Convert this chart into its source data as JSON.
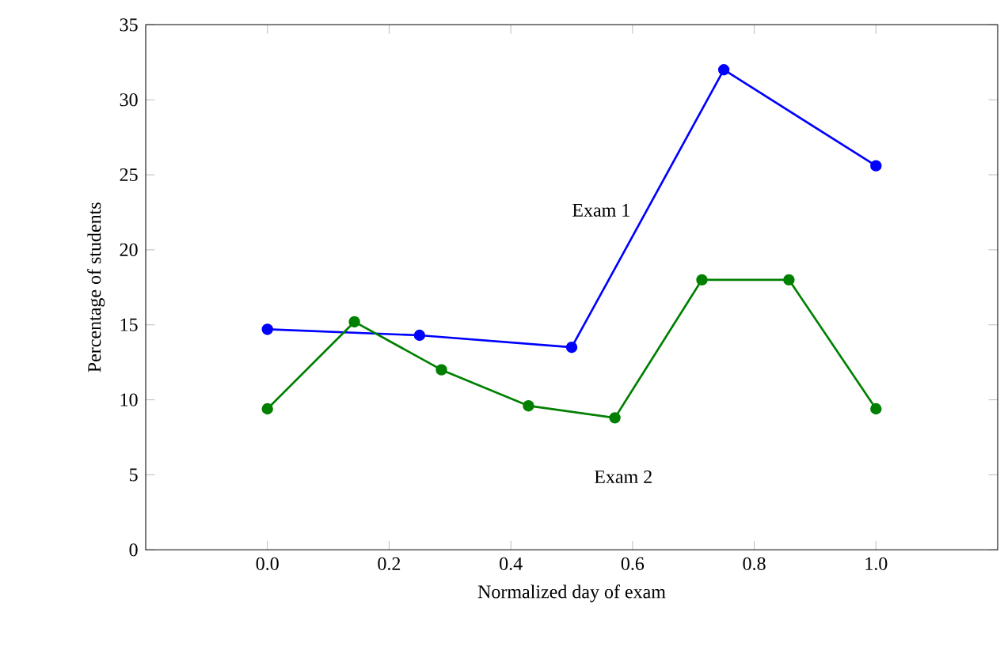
{
  "chart_data": {
    "type": "line",
    "xlabel": "Normalized day of exam",
    "ylabel": "Percentage of students",
    "xlim": [
      -0.2,
      1.2
    ],
    "ylim": [
      0,
      35
    ],
    "xticks": [
      {
        "value": 0,
        "label": "0.0"
      },
      0.2,
      0.4,
      0.6,
      0.8,
      {
        "value": 1,
        "label": "1.0"
      }
    ],
    "yticks": [
      0,
      5,
      10,
      15,
      20,
      25,
      30,
      35
    ],
    "marker": "circle",
    "line_style": "solid",
    "grid": false,
    "legend": false,
    "series": [
      {
        "name": "Exam 1",
        "color": "#0000ff",
        "x": [
          0,
          0.25,
          0.5,
          0.75,
          1.0
        ],
        "values": [
          14.7,
          14.3,
          13.5,
          32,
          25.6
        ]
      },
      {
        "name": "Exam 2",
        "color": "#008000",
        "x": [
          0,
          0.143,
          0.286,
          0.429,
          0.571,
          0.714,
          0.857,
          1.0
        ],
        "values": [
          9.4,
          15.2,
          12,
          9.6,
          8.8,
          18,
          18,
          9.4
        ]
      }
    ]
  }
}
